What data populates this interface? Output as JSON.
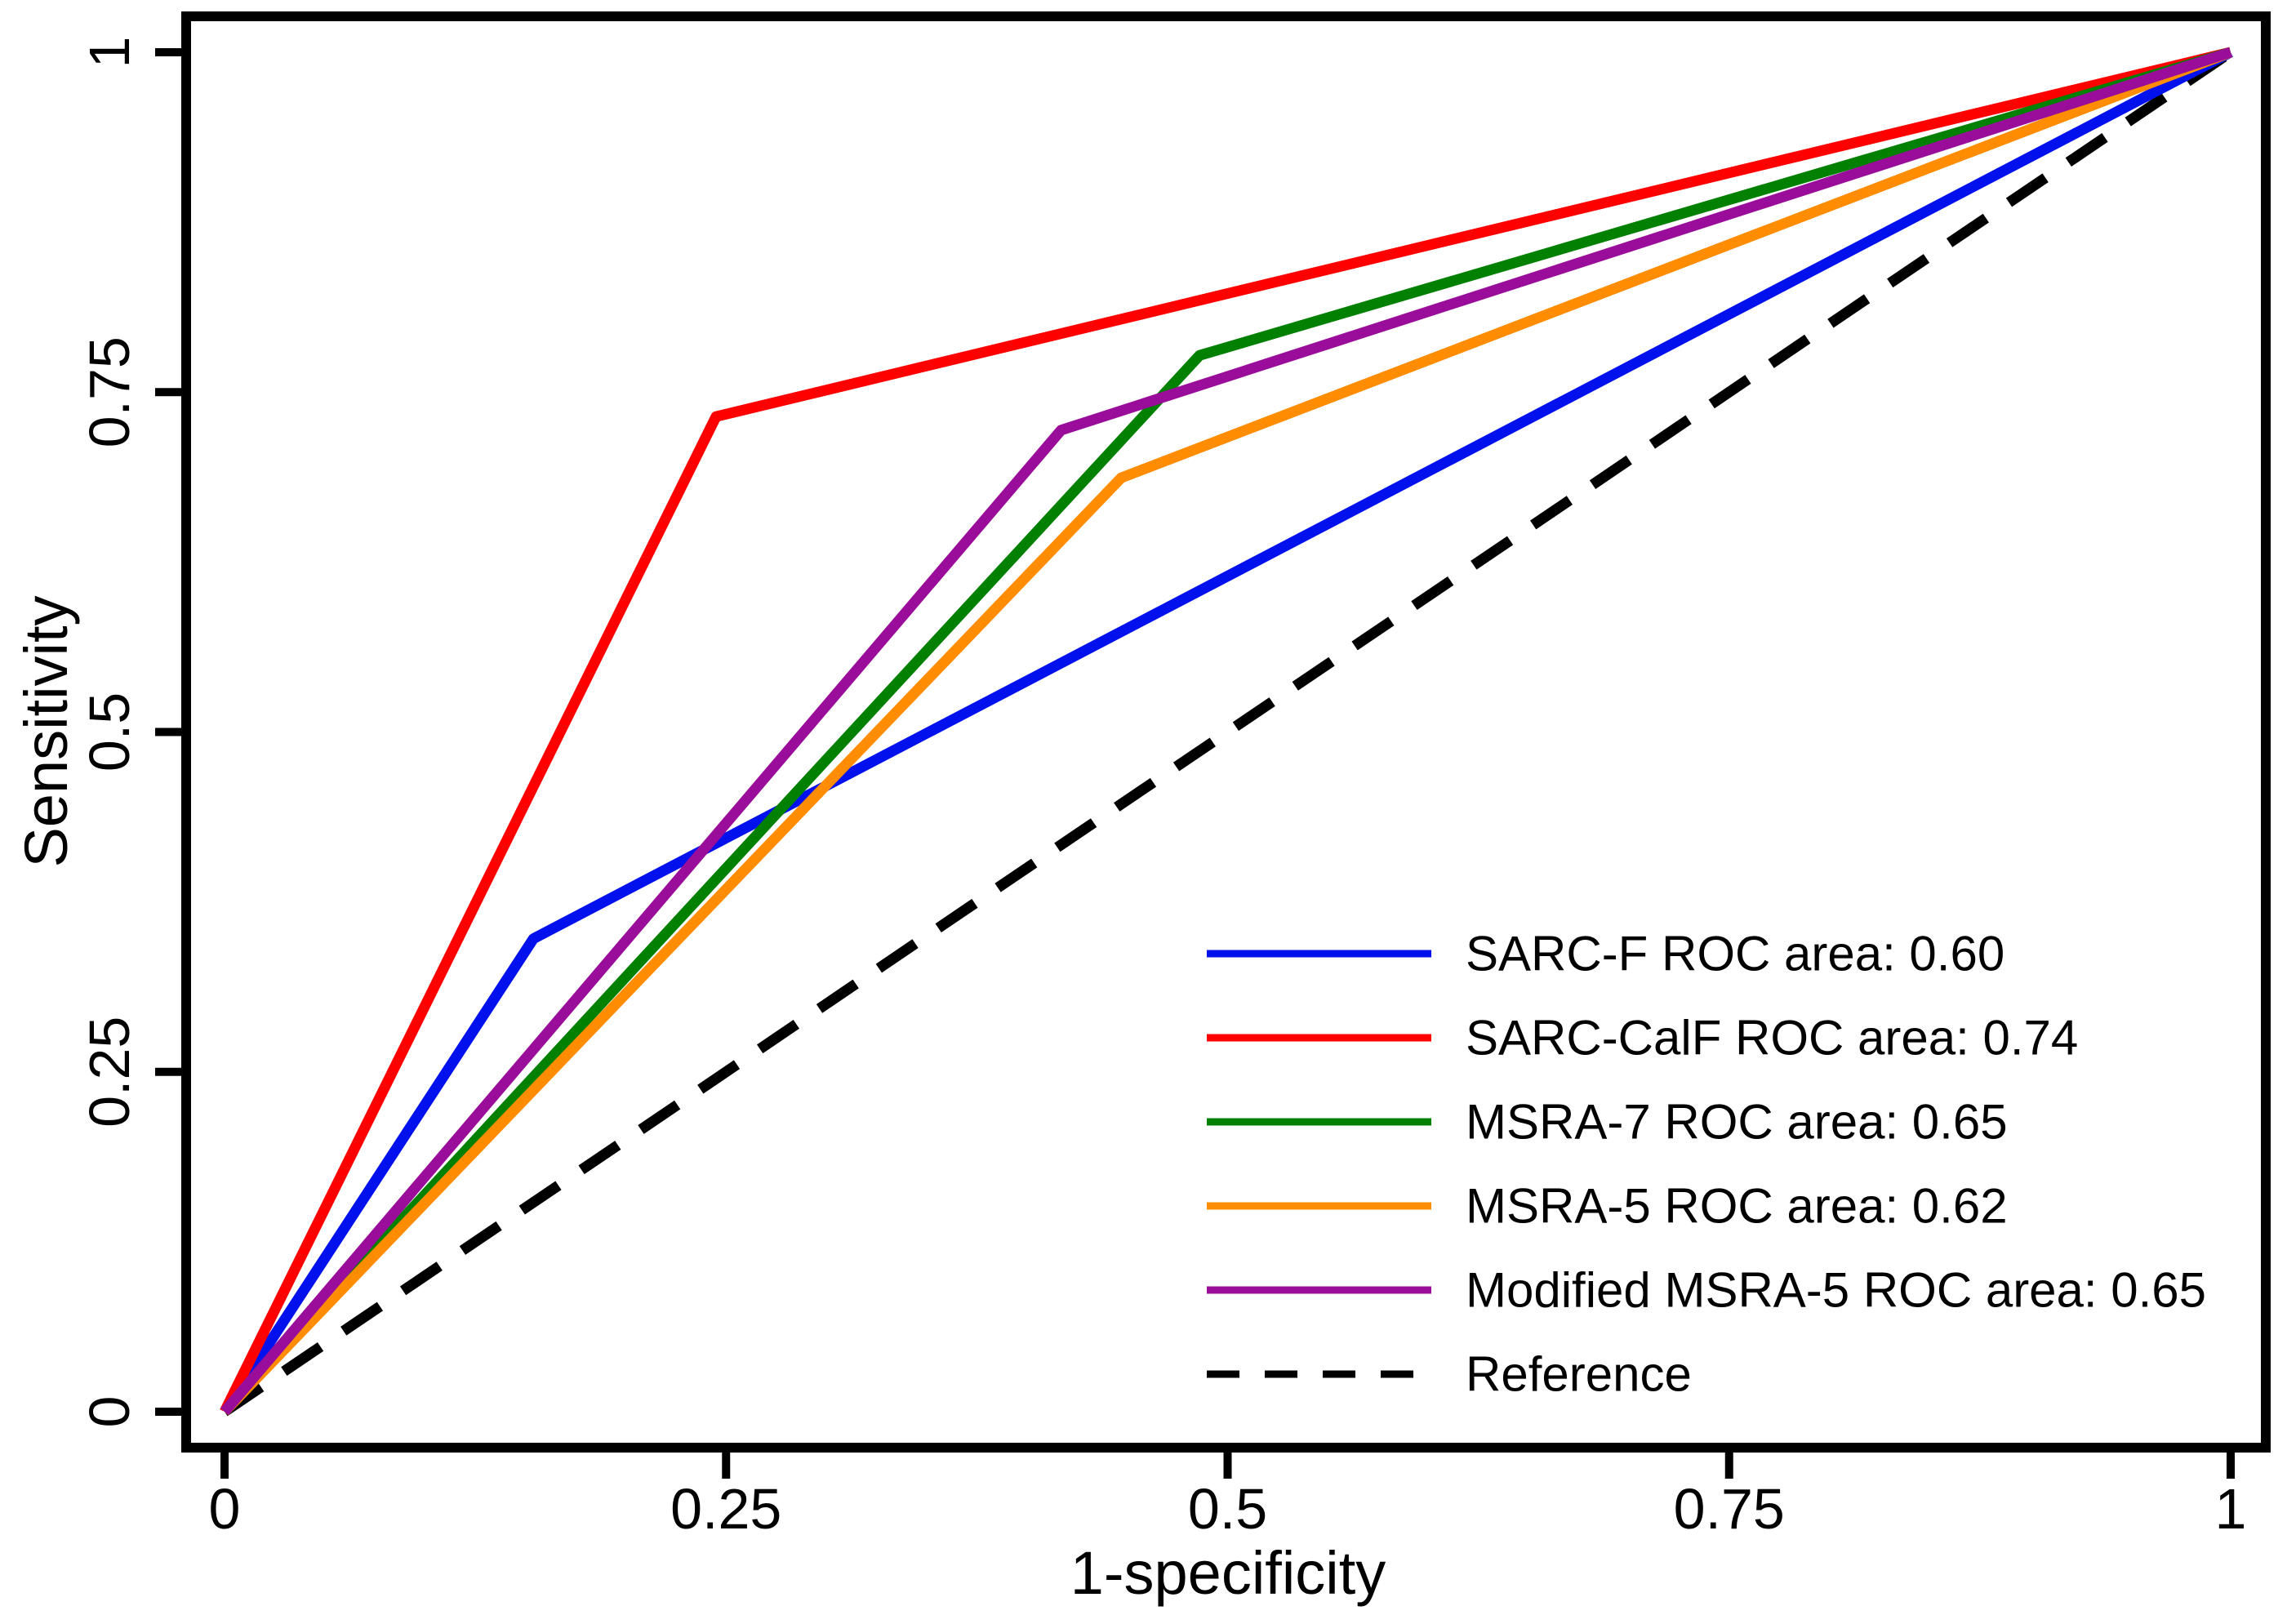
{
  "figure": {
    "background_color": "#ffffff",
    "axis_color": "#000000",
    "text_color": "#000000"
  },
  "chart_data": {
    "type": "line",
    "subtype": "roc-curve-comparison",
    "title": "",
    "xlabel": "1-specificity",
    "ylabel": "Sensitivity",
    "xlim": [
      0,
      1
    ],
    "ylim": [
      0,
      1
    ],
    "grid": false,
    "legend_position": "inside-lower-right",
    "x_axis": {
      "ticks": [
        {
          "value": 0,
          "label": "0"
        },
        {
          "value": 0.25,
          "label": "0.25"
        },
        {
          "value": 0.5,
          "label": "0.5"
        },
        {
          "value": 0.75,
          "label": "0.75"
        },
        {
          "value": 1,
          "label": "1"
        }
      ]
    },
    "y_axis": {
      "ticks": [
        {
          "value": 0,
          "label": "0"
        },
        {
          "value": 0.25,
          "label": "0.25"
        },
        {
          "value": 0.5,
          "label": "0.5"
        },
        {
          "value": 0.75,
          "label": "0.75"
        },
        {
          "value": 1,
          "label": "1"
        }
      ]
    },
    "series": [
      {
        "name": "SARC-F",
        "legend_label": "SARC-F ROC area: 0.60",
        "roc_area": 0.6,
        "color": "#0011ee",
        "style": "solid",
        "points": [
          [
            0,
            0
          ],
          [
            0.154,
            0.348
          ],
          [
            1,
            1
          ]
        ]
      },
      {
        "name": "SARC-CalF",
        "legend_label": "SARC-CalF ROC area: 0.74",
        "roc_area": 0.74,
        "color": "#fe0000",
        "style": "solid",
        "points": [
          [
            0,
            0
          ],
          [
            0.245,
            0.732
          ],
          [
            1,
            1
          ]
        ]
      },
      {
        "name": "MSRA-7",
        "legend_label": "MSRA-7 ROC area: 0.65",
        "roc_area": 0.65,
        "color": "#018001",
        "style": "solid",
        "points": [
          [
            0,
            0
          ],
          [
            0.486,
            0.777
          ],
          [
            1,
            1
          ]
        ]
      },
      {
        "name": "MSRA-5",
        "legend_label": "MSRA-5 ROC area: 0.62",
        "roc_area": 0.62,
        "color": "#ff8c01",
        "style": "solid",
        "points": [
          [
            0,
            0
          ],
          [
            0.447,
            0.687
          ],
          [
            1,
            1
          ]
        ]
      },
      {
        "name": "Modified MSRA-5",
        "legend_label": "Modified MSRA-5 ROC area: 0.65",
        "roc_area": 0.65,
        "color": "#9a0d9a",
        "style": "solid",
        "points": [
          [
            0,
            0
          ],
          [
            0.417,
            0.722
          ],
          [
            1,
            1
          ]
        ]
      },
      {
        "name": "Reference",
        "legend_label": "Reference",
        "color": "#000000",
        "style": "dashed",
        "points": [
          [
            0,
            0
          ],
          [
            1,
            1
          ]
        ]
      }
    ]
  }
}
